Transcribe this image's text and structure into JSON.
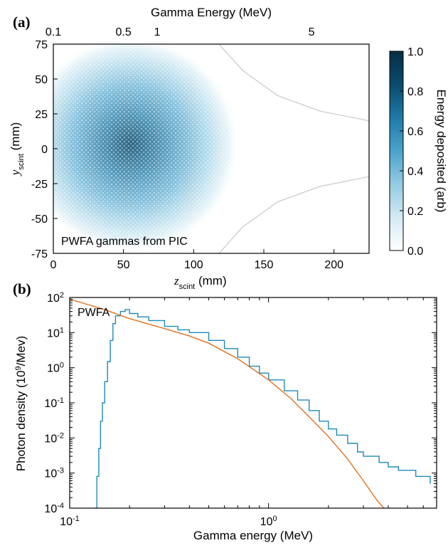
{
  "chart_data": [
    {
      "panel_label": "(a)",
      "type": "heatmap",
      "top_axis_label": "Gamma Energy (MeV)",
      "top_ticks": [
        {
          "z": 0,
          "label": "0.1"
        },
        {
          "z": 50,
          "label": "0.5"
        },
        {
          "z": 74,
          "label": "1"
        },
        {
          "z": 184,
          "label": "5"
        }
      ],
      "xlabel_var": "z",
      "xlabel_sub": "scint",
      "xlabel_unit": " (mm)",
      "ylabel_var": "y",
      "ylabel_sub": "scint",
      "ylabel_unit": " (mm)",
      "xlim": [
        0,
        225
      ],
      "ylim": [
        -75,
        75
      ],
      "xticks": [
        0,
        50,
        100,
        150,
        200
      ],
      "yticks": [
        -75,
        -50,
        -25,
        0,
        25,
        50,
        75
      ],
      "annotation": "PWFA gammas from PIC",
      "colorbar": {
        "label": "Energy deposited (arb)",
        "range": [
          0.0,
          1.0
        ],
        "ticks": [
          "0.0",
          "0.2",
          "0.4",
          "0.6",
          "0.8",
          "1.0"
        ],
        "colors": [
          "#ffffff",
          "#d3eaf3",
          "#93cbe2",
          "#4aa3cc",
          "#1f7aa6",
          "#0a4b6b",
          "#062f44"
        ]
      },
      "hotspot": {
        "z": 55,
        "y": 3,
        "peak": 0.85
      },
      "boundary_curves": [
        {
          "points": [
            [
              118,
              75
            ],
            [
              135,
              56
            ],
            [
              160,
              38
            ],
            [
              190,
              27
            ],
            [
              225,
              20
            ]
          ]
        },
        {
          "points": [
            [
              118,
              -75
            ],
            [
              135,
              -56
            ],
            [
              160,
              -38
            ],
            [
              190,
              -27
            ],
            [
              225,
              -20
            ]
          ]
        }
      ],
      "curve_color": "#c8c8c8"
    },
    {
      "panel_label": "(b)",
      "type": "line",
      "xscale": "log",
      "yscale": "log",
      "xlabel": "Gamma energy (MeV)",
      "ylabel_main": "Photon density (10",
      "ylabel_sup": "9",
      "ylabel_tail": "/Mev)",
      "xlim": [
        0.1,
        7.0
      ],
      "ylim": [
        0.0001,
        100
      ],
      "xtick_labels": [
        {
          "value": 0.1,
          "mant": "10",
          "exp": "-1"
        },
        {
          "value": 1,
          "mant": "10",
          "exp": "0"
        }
      ],
      "ytick_labels": [
        {
          "value": 0.0001,
          "mant": "10",
          "exp": "-4"
        },
        {
          "value": 0.001,
          "mant": "10",
          "exp": "-3"
        },
        {
          "value": 0.01,
          "mant": "10",
          "exp": "-2"
        },
        {
          "value": 0.1,
          "mant": "10",
          "exp": "-1"
        },
        {
          "value": 1,
          "mant": "10",
          "exp": "0"
        },
        {
          "value": 10,
          "mant": "10",
          "exp": "1"
        },
        {
          "value": 100,
          "mant": "10",
          "exp": "2"
        }
      ],
      "annotation": "PWFA",
      "series": [
        {
          "style": "step",
          "color": "#1f8bb8",
          "x": [
            0.133,
            0.137,
            0.14,
            0.143,
            0.146,
            0.15,
            0.155,
            0.16,
            0.165,
            0.17,
            0.18,
            0.19,
            0.2,
            0.22,
            0.25,
            0.3,
            0.35,
            0.4,
            0.5,
            0.6,
            0.7,
            0.8,
            0.9,
            1.0,
            1.2,
            1.4,
            1.6,
            1.8,
            2.0,
            2.2,
            2.5,
            2.8,
            3.0,
            3.3,
            3.6,
            4.0,
            4.5,
            5.0,
            5.5,
            6.0,
            6.5
          ],
          "y": [
            0.0001,
            0.0008,
            0.005,
            0.03,
            0.1,
            0.4,
            1.5,
            6,
            18,
            30,
            40,
            45,
            35,
            28,
            22,
            15,
            12,
            10,
            6,
            3.5,
            2,
            1.1,
            0.7,
            0.45,
            0.22,
            0.12,
            0.06,
            0.03,
            0.018,
            0.012,
            0.007,
            0.004,
            0.003,
            0.003,
            0.002,
            0.0015,
            0.0012,
            0.0012,
            0.0008,
            0.0008,
            0.0005
          ]
        },
        {
          "style": "line",
          "color": "#e07020",
          "x": [
            0.1,
            0.15,
            0.2,
            0.3,
            0.4,
            0.5,
            0.7,
            1.0,
            1.3,
            1.6,
            2.0,
            2.5,
            3.0,
            3.5,
            3.8
          ],
          "y": [
            90,
            45,
            25,
            13,
            8,
            5,
            1.8,
            0.45,
            0.13,
            0.04,
            0.011,
            0.0025,
            0.0006,
            0.00017,
            0.0001
          ]
        }
      ]
    }
  ]
}
